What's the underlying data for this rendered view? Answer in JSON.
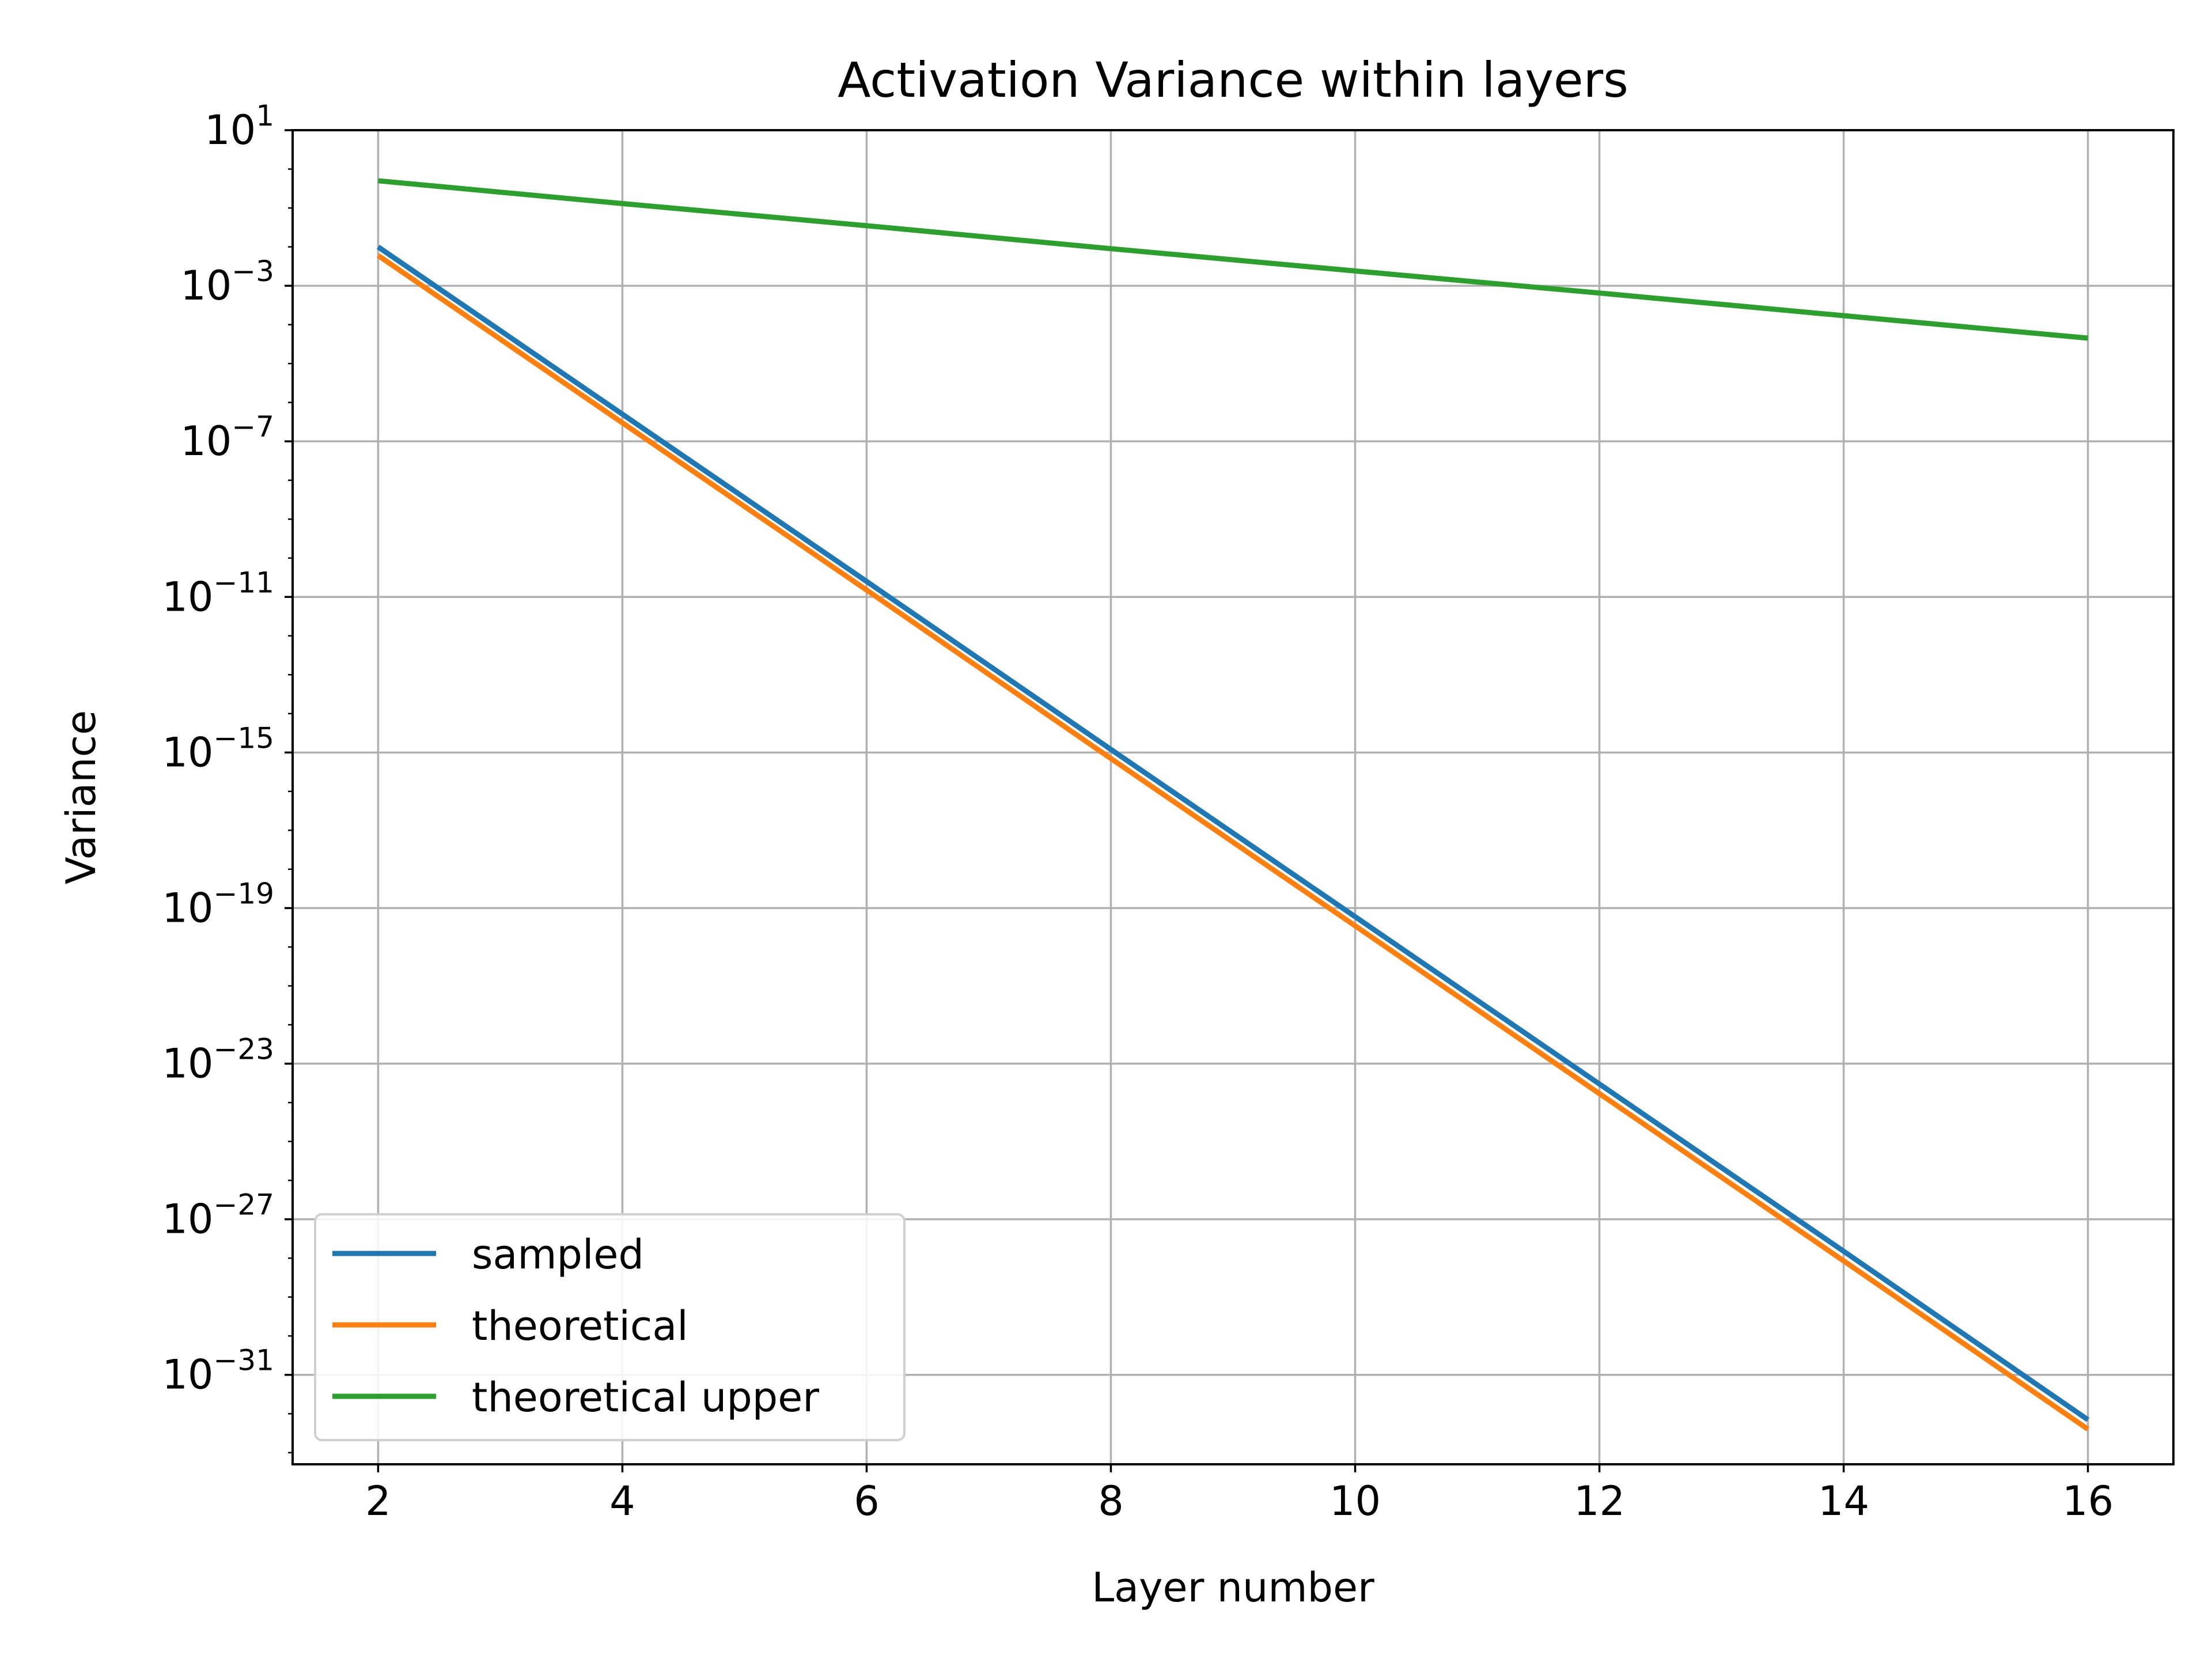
{
  "chart_data": {
    "type": "line",
    "title": "Activation Variance within layers",
    "xlabel": "Layer number",
    "ylabel": "Variance",
    "y_scale": "log",
    "xlim": [
      1.3,
      16.7
    ],
    "ylim_log10": [
      -33.3,
      1.0
    ],
    "x_ticks": [
      2,
      4,
      6,
      8,
      10,
      12,
      14,
      16
    ],
    "y_tick_exponents": [
      1,
      -3,
      -7,
      -11,
      -15,
      -19,
      -23,
      -27,
      -31
    ],
    "grid": true,
    "legend_placement": "lower-left",
    "series": [
      {
        "name": "sampled",
        "color": "#1f77b4",
        "x": [
          2,
          4,
          6,
          8,
          10,
          12,
          14,
          16
        ],
        "y": [
          0.01,
          5e-07,
          2.5e-11,
          1.2e-15,
          6e-20,
          3e-24,
          1.5e-28,
          7e-33
        ]
      },
      {
        "name": "theoretical",
        "color": "#ff7f0e",
        "x": [
          2,
          4,
          6,
          8,
          10,
          12,
          14,
          16
        ],
        "y": [
          0.006,
          3e-07,
          1.5e-11,
          7e-16,
          3.5e-20,
          1.7e-24,
          8.5e-29,
          4e-33
        ]
      },
      {
        "name": "theoretical upper",
        "color": "#2ca02c",
        "x": [
          2,
          4,
          6,
          8,
          10,
          12,
          14,
          16
        ],
        "y": [
          0.5,
          0.13,
          0.035,
          0.009,
          0.0024,
          0.00065,
          0.00017,
          4.5e-05
        ]
      }
    ]
  }
}
